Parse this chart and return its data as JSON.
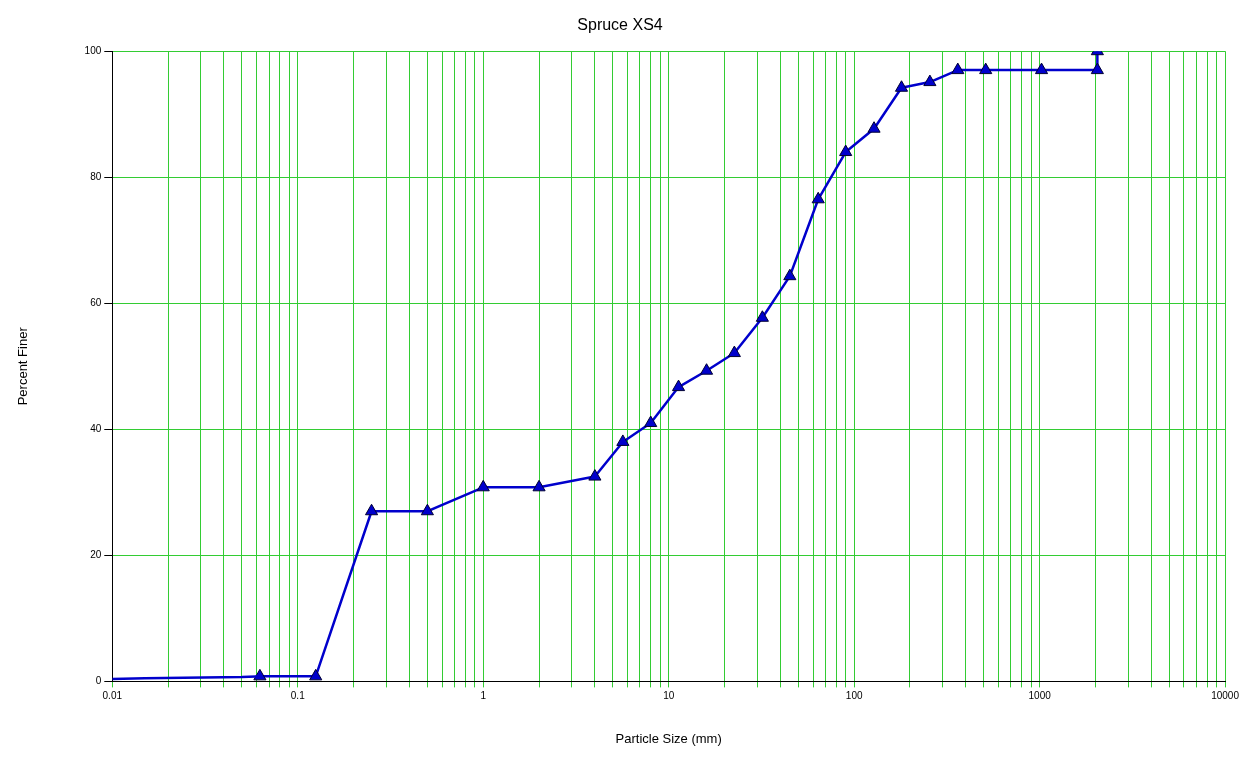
{
  "chart_data": {
    "type": "line",
    "title": "Spruce XS4",
    "xlabel": "Particle Size (mm)",
    "ylabel": "Percent Finer",
    "log": "x",
    "grid": true,
    "line_style": "solid",
    "xlim": [
      0.01,
      10000
    ],
    "xticks": [
      0.01,
      {
        "value": 0.02,
        "label": null
      },
      {
        "value": 0.03,
        "label": null
      },
      {
        "value": 0.04,
        "label": null
      },
      {
        "value": 0.05,
        "label": null
      },
      {
        "value": 0.06,
        "label": null
      },
      {
        "value": 0.07,
        "label": null
      },
      {
        "value": 0.08,
        "label": null
      },
      {
        "value": 0.09,
        "label": null
      },
      0.1,
      {
        "value": 0.2,
        "label": null
      },
      {
        "value": 0.3,
        "label": null
      },
      {
        "value": 0.4,
        "label": null
      },
      {
        "value": 0.5,
        "label": null
      },
      {
        "value": 0.6,
        "label": null
      },
      {
        "value": 0.7,
        "label": null
      },
      {
        "value": 0.8,
        "label": null
      },
      {
        "value": 0.9,
        "label": null
      },
      1,
      {
        "value": 2,
        "label": null
      },
      {
        "value": 3,
        "label": null
      },
      {
        "value": 4,
        "label": null
      },
      {
        "value": 5,
        "label": null
      },
      {
        "value": 6,
        "label": null
      },
      {
        "value": 7,
        "label": null
      },
      {
        "value": 8,
        "label": null
      },
      {
        "value": 9,
        "label": null
      },
      10,
      {
        "value": 20,
        "label": null
      },
      {
        "value": 30,
        "label": null
      },
      {
        "value": 40,
        "label": null
      },
      {
        "value": 50,
        "label": null
      },
      {
        "value": 60,
        "label": null
      },
      {
        "value": 70,
        "label": null
      },
      {
        "value": 80,
        "label": null
      },
      {
        "value": 90,
        "label": null
      },
      100,
      {
        "value": 200,
        "label": null
      },
      {
        "value": 300,
        "label": null
      },
      {
        "value": 400,
        "label": null
      },
      {
        "value": 500,
        "label": null
      },
      {
        "value": 600,
        "label": null
      },
      {
        "value": 700,
        "label": null
      },
      {
        "value": 800,
        "label": null
      },
      {
        "value": 900,
        "label": null
      },
      1000,
      {
        "value": 2000,
        "label": null
      },
      {
        "value": 3000,
        "label": null
      },
      {
        "value": 4000,
        "label": null
      },
      {
        "value": 5000,
        "label": null
      },
      {
        "value": 6000,
        "label": null
      },
      {
        "value": 7000,
        "label": null
      },
      {
        "value": 8000,
        "label": null
      },
      {
        "value": 9000,
        "label": null
      },
      10000
    ],
    "ylim": [
      0,
      100
    ],
    "yticks": [
      0,
      20,
      40,
      60,
      80,
      100
    ],
    "series": [
      {
        "marker": "none",
        "color": "#0000cc",
        "x": [
          0.01,
          0.015,
          0.05,
          0.0625
        ],
        "values": [
          0.4,
          0.5,
          0.7,
          0.8
        ]
      },
      {
        "marker": "triangle",
        "color": "#0000cc",
        "x": [
          0.0625,
          0.125,
          0.25,
          0.5,
          1,
          2,
          4,
          5.66,
          8,
          11.3,
          16,
          22.6,
          32,
          45,
          64,
          90,
          128,
          180,
          256,
          362,
          512,
          1024,
          2048,
          2048
        ],
        "values": [
          0.8,
          0.8,
          27,
          27,
          30.8,
          30.8,
          32.5,
          38,
          41,
          46.7,
          49.3,
          52.1,
          57.7,
          64.3,
          76.5,
          84,
          87.7,
          94.2,
          95.1,
          97,
          97,
          97,
          97,
          100
        ]
      }
    ]
  }
}
